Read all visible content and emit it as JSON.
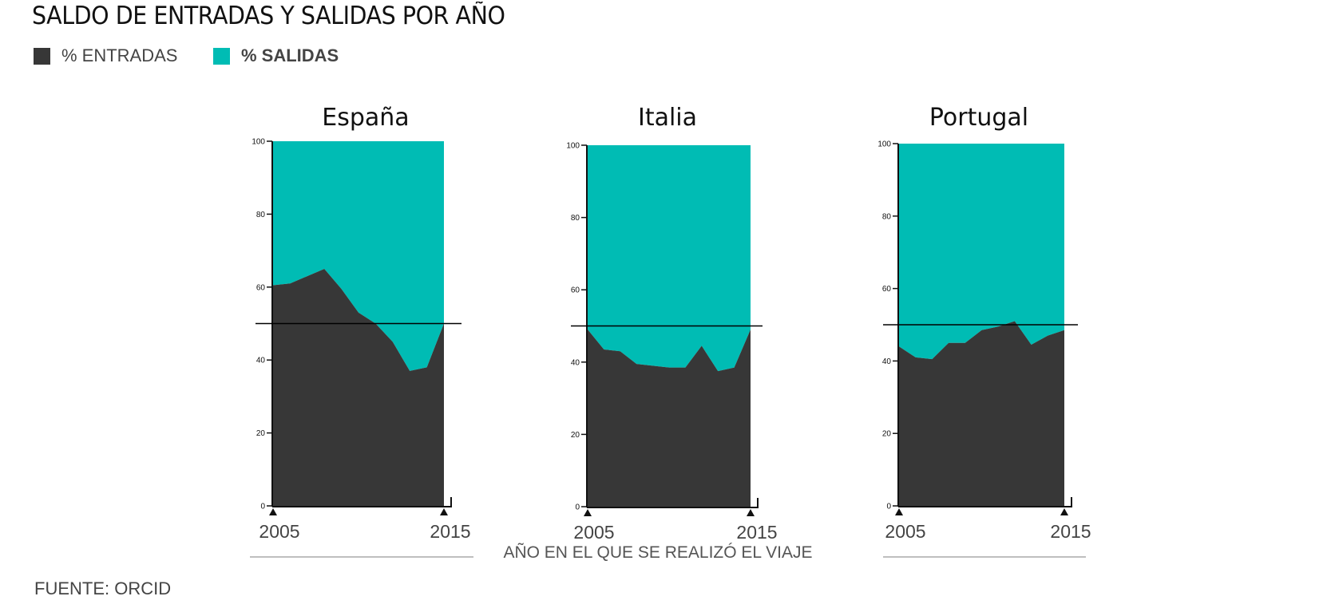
{
  "title": "SALDO DE ENTRADAS Y SALIDAS POR AÑO",
  "colors": {
    "entradas": "#373737",
    "salidas": "#00bcb4",
    "axis": "#111111",
    "rule": "#999999"
  },
  "legend": [
    {
      "label": "% ENTRADAS",
      "color": "#373737"
    },
    {
      "label": "% SALIDAS",
      "color": "#00bcb4"
    }
  ],
  "xlabel": "AÑO EN EL QUE SE REALIZÓ EL VIAJE",
  "source": "FUENTE: ORCID",
  "chart_data": [
    {
      "type": "area",
      "title": "España",
      "x": [
        2005,
        2006,
        2007,
        2008,
        2009,
        2010,
        2011,
        2012,
        2013,
        2014,
        2015
      ],
      "series": [
        {
          "name": "% ENTRADAS",
          "values": [
            60.5,
            61,
            63,
            65,
            59.5,
            53,
            50,
            45,
            37,
            38,
            50
          ]
        },
        {
          "name": "% SALIDAS",
          "values": [
            39.5,
            39,
            37,
            35,
            40.5,
            47,
            50,
            55,
            63,
            62,
            50
          ]
        }
      ],
      "stacked": true,
      "reference_line": 50,
      "ylim": [
        0,
        100
      ],
      "yticks": [
        0,
        20,
        40,
        60,
        80,
        100
      ],
      "xtick_labels": [
        "2005",
        "2015"
      ]
    },
    {
      "type": "area",
      "title": "Italia",
      "x": [
        2005,
        2006,
        2007,
        2008,
        2009,
        2010,
        2011,
        2012,
        2013,
        2014,
        2015
      ],
      "series": [
        {
          "name": "% ENTRADAS",
          "values": [
            49,
            43.5,
            43,
            39.5,
            39,
            38.5,
            38.5,
            44.5,
            37.5,
            38.5,
            49
          ]
        },
        {
          "name": "% SALIDAS",
          "values": [
            51,
            56.5,
            57,
            60.5,
            61,
            61.5,
            61.5,
            55.5,
            62.5,
            61.5,
            51
          ]
        }
      ],
      "stacked": true,
      "reference_line": 50,
      "ylim": [
        0,
        100
      ],
      "yticks": [
        0,
        20,
        40,
        60,
        80,
        100
      ],
      "xtick_labels": [
        "2005",
        "2015"
      ]
    },
    {
      "type": "area",
      "title": "Portugal",
      "x": [
        2005,
        2006,
        2007,
        2008,
        2009,
        2010,
        2011,
        2012,
        2013,
        2014,
        2015
      ],
      "series": [
        {
          "name": "% ENTRADAS",
          "values": [
            44,
            41,
            40.5,
            45,
            45,
            48.5,
            49.5,
            51,
            44.5,
            47,
            48.5
          ]
        },
        {
          "name": "% SALIDAS",
          "values": [
            56,
            59,
            59.5,
            55,
            55,
            51.5,
            50.5,
            49,
            55.5,
            53,
            51.5
          ]
        }
      ],
      "stacked": true,
      "reference_line": 50,
      "ylim": [
        0,
        100
      ],
      "yticks": [
        0,
        20,
        40,
        60,
        80,
        100
      ],
      "xtick_labels": [
        "2005",
        "2015"
      ]
    }
  ]
}
